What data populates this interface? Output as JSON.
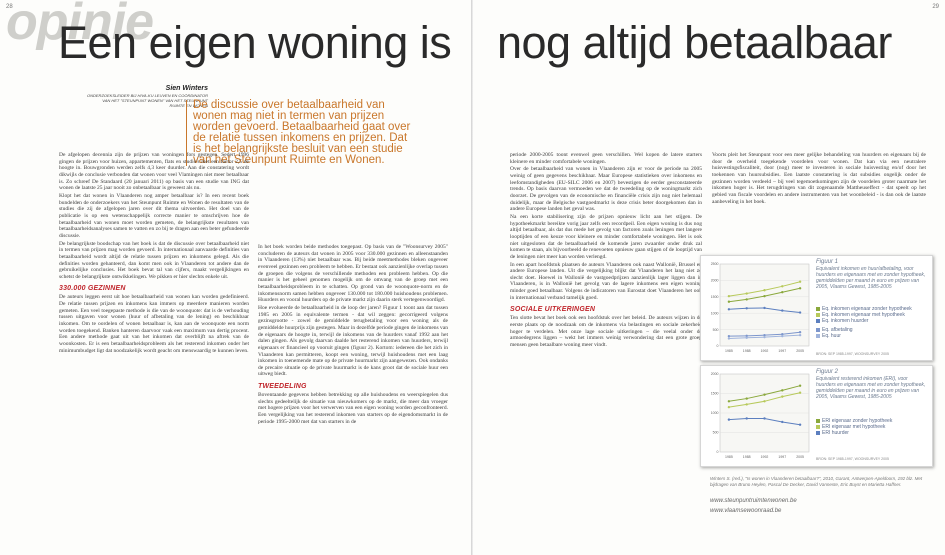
{
  "page_numbers": {
    "left": "28",
    "right": "29"
  },
  "section_word": "opinie",
  "headline": {
    "left": "Een eigen woning is",
    "right": "nog altijd betaalbaar"
  },
  "author": {
    "name": "Sien Winters",
    "role": "ONDERZOEKSLEIDER BIJ HIVA-KU LEUVEN EN COÖRDINATOR VAN HET \"STEUNPUNT WONEN\" VAN HET STEUNPUNT RUIMTE EN WONEN"
  },
  "lead": "De discussie over betaalbaarheid van wonen mag niet in termen van prijzen worden gevoerd. Betaalbaarheid gaat over de relatie tussen inkomens en prijzen. Dat is het belangrijkste besluit van een studie van het Steunpunt Ruimte en Wonen.",
  "col1": {
    "p1": "De afgelopen decennia zijn de prijzen van woningen fors gestegen. Sedert 1996 gingen de prijzen voor huizen, appartementen, flats en studio's met een factor 2,5 de hoogte in. Bouwgronden werden zelfs 4,3 keer duurder. Aan die constatering wordt dikwijls de conclusie verbonden dat wonen voor veel Vlamingen niet meer betaalbaar is. Zo schreef De Standaard (20 januari 2011) op basis van een studie van ING dat wonen de laatste 25 jaar nooit zo onbetaalbaar is geweest als nu.",
    "p2": "Klopt het dat wonen in Vlaanderen nog amper betaalbaar is? In een recent boek bundelden de onderzoekers van het Steunpunt Ruimte en Wonen de resultaten van de studies die zij de afgelopen jaren over dit thema uitvoerden. Het doel van de publicatie is op een wetenschappelijk correcte manier te omschrijven hoe de betaalbaarheid van wonen moet worden gemeten, de belangrijkste resultaten van betaalbaarheidsanalyses samen te vatten en zo bij te dragen aan een beter gefundeerde discussie.",
    "p3": "De belangrijkste boodschap van het boek is dat de discussie over betaalbaarheid niet in termen van prijzen mag worden gevoerd. In internationaal aanvaarde definities van betaalbaarheid wordt altijd de relatie tussen prijzen en inkomens gelegd. Als die definities worden gehanteerd, dan komt men ook in Vlaanderen tot andere dan de gebruikelijke conclusies. Het boek bevat tal van cijfers, maakt vergelijkingen en schetst de belangrijkste ontwikkelingen. We pikken er hier slechts enkele uit.",
    "h1": "330.000 GEZINNEN",
    "p4": "De auteurs leggen eerst uit hoe betaalbaarheid van wonen kan worden gedefinieerd. De relatie tussen prijzen en inkomens kan immers op meerdere manieren worden gemeten. Een veel toegepaste methode is die van de woonquote: dat is de verhouding tussen uitgaven voor wonen (huur of afbetaling van de lening) en beschikbaar inkomen. Om te oordelen of wonen betaalbaar is, kan aan de woonquote een norm worden toegekend. Banken hanteren daarvoor vaak een maximum van dertig procent. Een andere methode gaat uit van het inkomen dat overblijft na aftrek van de woonkosten. Er is een betaalbaarheidsprobleem als het resterend inkomen onder het minimumbudget ligt dat noodzakelijk wordt geacht om menswaardig te kunnen leven."
  },
  "col2": {
    "p1": "In het boek worden beide methodes toegepast. Op basis van de \"Woonsurvey 2005\" concluderen de auteurs dat wonen in 2005 voor 330.000 gezinnen en alleenstaanden in Vlaanderen (13%) niet betaalbaar was. Bij beide meetmethodes bleken ongeveer evenveel gezinnen een probleem te hebben. Er bestaat ook aanzienlijke overlap tussen de groepen die volgens de verschillende methoden een probleem hebben. Op die manier is het geheel genomen mogelijk om de omvang van de groep met een betaalbaarheidsprobleem in te schatten. Op grond van de woonquote-norm en de inkomensnorm samen hebben ongeveer 130.000 tot 180.000 huishoudens problemen. Huurders en vooral huurders op de private markt zijn daarin sterk vertegenwoordigd.",
    "p2": "Hoe evolueerde de betaalbaarheid in de loop der jaren? Figuur 1 toont aan dat tussen 1985 en 2005 in equivalente termen - dat wil zeggen: gecorrigeerd volgens gezinsgrootte - zowel de gemiddelde terugbetaling voor een woning als de gemiddelde huurprijs zijn gestegen. Maar in dezelfde periode gingen de inkomens van de eigenaars de hoogte in, terwijl de inkomens van de huurders vanaf 1992 aan het dalen gingen. Als gevolg daarvan daalde het resterend inkomen van huurders, terwijl eigenaars er financieel op vooruit gingen (figuur 2). Kortom: iedereen die het zich in Vlaanderen kan permitteren, koopt een woning, terwijl huishoudens met een laag inkomen in toenemende mate op de private huurmarkt zijn aangewezen. Ook ondanks de precaire situatie op de private huurmarkt is de kans groot dat de sociale huur een uitweg biedt.",
    "h1": "TWEEDELING",
    "p3": "Boventaande gegevens hebben betrekking op alle huishoudens en weerspiegelen dus slechts gedeeltelijk de situatie van nieuwkomers op de markt, die meer dan vroeger met hogere prijzen voor het verwerven van een eigen woning worden geconfronteerd. Een vergelijking van het resterend inkomen van starters op de eigendomsmarkt in de periode 1995-2000 met dat van starters in de"
  },
  "col3": {
    "p1": "periode 2000-2005 toont evenwel geen verschillen. Wel kopen de latere starters kleinere en minder comfortabele woningen.",
    "p2": "Over de betaalbaarheid van wonen in Vlaanderen zijn er voor de periode na 2005 weinig of geen gegevens beschikbaar. Maar Europese statistieken over inkomens en leefomstandigheden (EU-SILC 2006 en 2007) bevestigen de eerder gesconstateerde trends. Op basis daarvan vermoeden we dat de tweedeling op de woningmarkt zich doorzet. De gevolgen van de economische en financiële crisis zijn nog niet helemaal duidelijk, maar de Belgische vastgoedmarkt is deze crisis beter doorgekomen dan in andere Europese landen het geval was.",
    "p3": "Na een korte stabilisering zijn de prijzen opnieuw licht aan het stijgen. De hypotheekmarkt bereikte vorig jaar zelfs een recordpeil. Een eigen woning is dus nog altijd betaalbaar, als dat dus mede het gevolg van factoren zoals leningen met langere looptijden of een keuze voor kleinere en minder comfortabele woningen. Het is ook niet uitgesloten dat de betaalbaarheid de komende jaren zwaarder onder druk zal komen te staan, als bijvoorbeeld de renevoeten opnieuw gaan stijgen of de looptijd van de leningen niet meer kan worden verlengd.",
    "p4": "In een apart hoofdstuk plaatsen de auteurs Vlaanderen ook naast Wallonië, Brussel en andere Europese landen. Uit die vergelijking blijkt dat Vlaanderen het lang niet zo slecht doet. Hoewel in Wallonië de vastgoedprijzen aanzienlijk lager liggen dan in Vlaanderen, is in Wallonië het gevolg van de lagere inkomens een eigen woning minder goed betaalbaar. Volgens de indicatoren van Eurostat doet Vlaanderen het ook in internationaal verband tamelijk goed.",
    "h1": "SOCIALE UITKERINGEN",
    "p5": "Ten slotte bevat het boek ook een hoofdstuk over het beleid. De auteurs wijzen in de eerste plaats op de noodzaak om de inkomens via belastingen en sociale zekerheid hoger te verdelen. Met onze lage sociale uitkeringen – die veelal onder de armoedegrens liggen – wekt het immers weinig verwondering dat een grote groep mensen geen betaalbare woning meer vindt."
  },
  "col4": {
    "p1": "Voorts pleit het Steunpunt voor een meer gelijke behandeling van huurders en eigenaars bij de door de overheid toegekende voordelen voor wonen. Dat kan via een neutralere huisvestingsfiscaliteit, door (nog) meer te investeren in sociale huisvesting en/of door het toekennen van huursubsidies. Een laatste constatering is dat subsidies ongelijk onder de gezinnen worden verdeeld – bij veel tegemoetkomingen zijn de voordelen groter naarmate het inkomen hoger is. Het terugdringen van dit zogenaamde Mattheuseffect - dat speelt op het gebied van fiscale voordelen en andere instrumenten van het woonbeleid - is dan ook de laatste aanbeveling in het boek."
  },
  "figure1": {
    "title": "Figuur 1",
    "caption": "Equivalent inkomen en huur/afbetaling, voor huurders en eigenaars met en zonder hypotheek, gemiddelden per maand in euro en prijzen van 2005, Vlaams Gewest, 1985-2005",
    "source": "BRON: SEP 1985-1997, WOONSURVEY 2005",
    "x_labels": [
      "1985",
      "1988",
      "1992",
      "1997",
      "2005"
    ],
    "y_labels": [
      "2500",
      "2000",
      "1500",
      "1000",
      "500",
      "0"
    ],
    "legend": [
      {
        "label": "Eq. inkomen eigenaar zonder hypotheek",
        "color": "#8aa83c"
      },
      {
        "label": "Eq. inkomen eigenaar met hypotheek",
        "color": "#b7c95a"
      },
      {
        "label": "Eq. inkomen huurder",
        "color": "#5c7fbf"
      },
      {
        "label": "Eq. afbetaling",
        "color": "#7d96cc"
      },
      {
        "label": "Eq. huur",
        "color": "#a0b4dc"
      }
    ]
  },
  "figure2": {
    "title": "Figuur 2",
    "caption": "Equivalent resterend inkomen (ERI), voor huurders en eigenaars met en zonder hypotheek, gemiddelden per maand in euro en prijzen van 2005, Vlaams Gewest, 1985-2005",
    "source": "BRON: SEP 1985-1997, WOONSURVEY 2005",
    "x_labels": [
      "1985",
      "1988",
      "1992",
      "1997",
      "2005"
    ],
    "y_labels": [
      "2000",
      "1500",
      "1000",
      "500",
      "0"
    ],
    "legend": [
      {
        "label": "ERI eigenaar zonder hypotheek",
        "color": "#8aa83c"
      },
      {
        "label": "ERI eigenaar met hypotheek",
        "color": "#b7c95a"
      },
      {
        "label": "ERI huurder",
        "color": "#5c7fbf"
      }
    ]
  },
  "chart_data": [
    {
      "type": "line",
      "title": "Figuur 1",
      "x": [
        "1985",
        "1988",
        "1992",
        "1997",
        "2005"
      ],
      "ylim": [
        0,
        2500
      ],
      "series": [
        {
          "name": "Eq. inkomen eigenaar zonder hypotheek",
          "values": [
            1350,
            1420,
            1520,
            1640,
            1760
          ]
        },
        {
          "name": "Eq. inkomen eigenaar met hypotheek",
          "values": [
            1520,
            1600,
            1700,
            1820,
            1960
          ]
        },
        {
          "name": "Eq. inkomen huurder",
          "values": [
            1120,
            1150,
            1160,
            1080,
            1020
          ]
        },
        {
          "name": "Eq. afbetaling",
          "values": [
            300,
            310,
            330,
            360,
            420
          ]
        },
        {
          "name": "Eq. huur",
          "values": [
            230,
            250,
            270,
            300,
            330
          ]
        }
      ]
    },
    {
      "type": "line",
      "title": "Figuur 2",
      "x": [
        "1985",
        "1988",
        "1992",
        "1997",
        "2005"
      ],
      "ylim": [
        0,
        2000
      ],
      "series": [
        {
          "name": "ERI eigenaar zonder hypotheek",
          "values": [
            1300,
            1370,
            1470,
            1580,
            1700
          ]
        },
        {
          "name": "ERI eigenaar met hypotheek",
          "values": [
            1150,
            1220,
            1300,
            1420,
            1520
          ]
        },
        {
          "name": "ERI huurder",
          "values": [
            830,
            860,
            860,
            770,
            700
          ]
        }
      ]
    }
  ],
  "sources_note": "Winters S. (red.), \"Is wonen in Vlaanderen betaalbaar?\", 2010, Garant, Antwerpen-Apeldoorn, 192 blz. Met bijdragen van Bruno Heylen, Pascal De Decker, David Vanneste, Eric Buyst en Marietta Haffner.",
  "links": [
    "www.steunpuntruimtenwonen.be",
    "www.vlaamsewoonraad.be"
  ]
}
